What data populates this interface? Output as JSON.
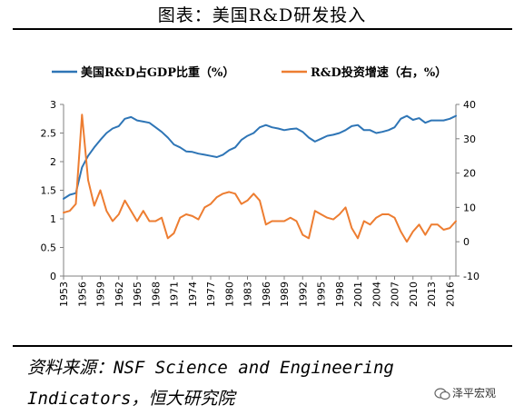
{
  "title": "图表：美国R&D研发投入",
  "source_line1": "资料来源：NSF Science and Engineering",
  "source_line2": "Indicators，恒大研究院",
  "watermark": "泽平宏观",
  "chart_data": {
    "type": "line",
    "legend_position": "top",
    "grid": false,
    "x": [
      1953,
      1954,
      1955,
      1956,
      1957,
      1958,
      1959,
      1960,
      1961,
      1962,
      1963,
      1964,
      1965,
      1966,
      1967,
      1968,
      1969,
      1970,
      1971,
      1972,
      1973,
      1974,
      1975,
      1976,
      1977,
      1978,
      1979,
      1980,
      1981,
      1982,
      1983,
      1984,
      1985,
      1986,
      1987,
      1988,
      1989,
      1990,
      1991,
      1992,
      1993,
      1994,
      1995,
      1996,
      1997,
      1998,
      1999,
      2000,
      2001,
      2002,
      2003,
      2004,
      2005,
      2006,
      2007,
      2008,
      2009,
      2010,
      2011,
      2012,
      2013,
      2014,
      2015,
      2016,
      2017
    ],
    "x_tick_labels": [
      "1953",
      "1956",
      "1959",
      "1962",
      "1965",
      "1968",
      "1971",
      "1974",
      "1977",
      "1980",
      "1983",
      "1986",
      "1989",
      "1992",
      "1995",
      "1998",
      "2001",
      "2004",
      "2007",
      "2010",
      "2013",
      "2016"
    ],
    "y_left": {
      "range": [
        0,
        3
      ],
      "ticks": [
        "0",
        "0.5",
        "1",
        "1.5",
        "2",
        "2.5",
        "3"
      ]
    },
    "y_right": {
      "range": [
        -10,
        40
      ],
      "ticks": [
        "-10",
        "0",
        "10",
        "20",
        "30",
        "40"
      ]
    },
    "series": [
      {
        "name": "美国R&D占GDP比重（%）",
        "axis": "left",
        "color": "#2e75b6",
        "values": [
          1.35,
          1.42,
          1.45,
          1.9,
          2.1,
          2.25,
          2.38,
          2.5,
          2.58,
          2.62,
          2.75,
          2.78,
          2.72,
          2.7,
          2.68,
          2.6,
          2.52,
          2.42,
          2.3,
          2.25,
          2.18,
          2.17,
          2.14,
          2.12,
          2.1,
          2.08,
          2.12,
          2.2,
          2.25,
          2.38,
          2.45,
          2.5,
          2.6,
          2.64,
          2.6,
          2.58,
          2.55,
          2.57,
          2.58,
          2.52,
          2.42,
          2.35,
          2.4,
          2.45,
          2.47,
          2.5,
          2.55,
          2.62,
          2.64,
          2.55,
          2.55,
          2.5,
          2.52,
          2.55,
          2.6,
          2.75,
          2.8,
          2.73,
          2.76,
          2.68,
          2.72,
          2.72,
          2.72,
          2.75,
          2.8
        ]
      },
      {
        "name": "R&D投资增速（右，%）",
        "axis": "right",
        "color": "#ed7d31",
        "values": [
          8.5,
          9,
          11,
          37,
          18,
          10.5,
          15,
          9,
          6,
          8,
          12,
          9,
          6,
          9,
          6,
          6,
          7,
          1,
          2.5,
          7,
          8,
          7.5,
          6.5,
          10,
          11,
          13,
          14,
          14.5,
          14,
          11,
          12,
          14,
          12,
          5,
          6,
          6,
          6,
          7,
          6,
          2,
          1,
          9,
          8,
          7,
          6.5,
          8,
          10,
          4,
          1,
          6,
          5,
          7,
          8,
          8,
          7,
          3,
          0,
          3,
          5,
          2,
          5,
          5,
          3.5,
          4,
          6
        ]
      }
    ]
  }
}
